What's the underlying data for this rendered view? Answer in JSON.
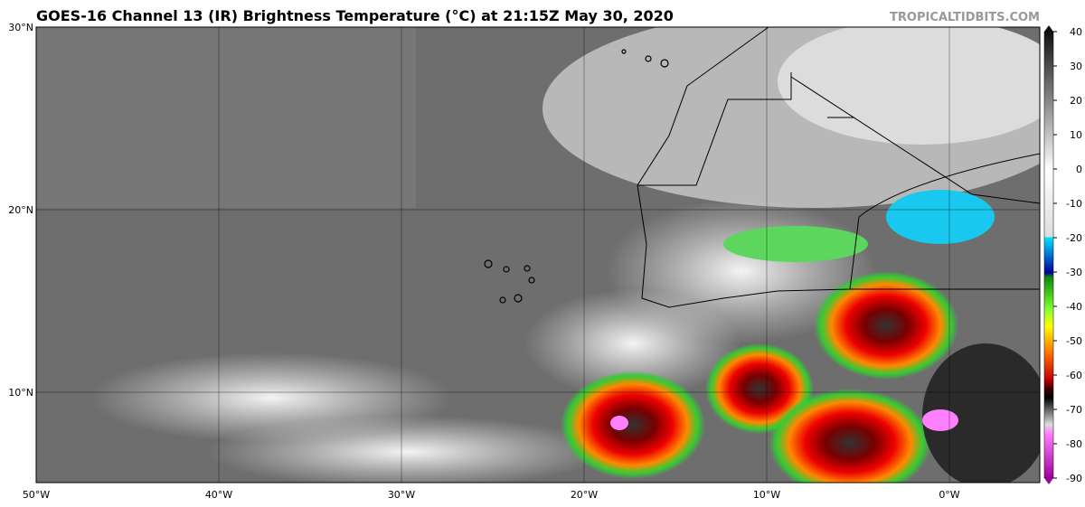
{
  "header": {
    "title": "GOES-16 Channel 13 (IR) Brightness Temperature (°C) at 21:15Z May 30, 2020",
    "credit": "TROPICALTIDBITS.COM"
  },
  "map": {
    "lat_labels": [
      "30°N",
      "20°N",
      "10°N"
    ],
    "lon_labels": [
      "50°W",
      "40°W",
      "30°W",
      "20°W",
      "10°W",
      "0°W"
    ]
  },
  "colorbar": {
    "lim": [
      -90,
      40
    ],
    "ticks": [
      40,
      30,
      20,
      10,
      0,
      -10,
      -20,
      -30,
      -40,
      -50,
      -60,
      -70,
      -80,
      -90
    ]
  }
}
